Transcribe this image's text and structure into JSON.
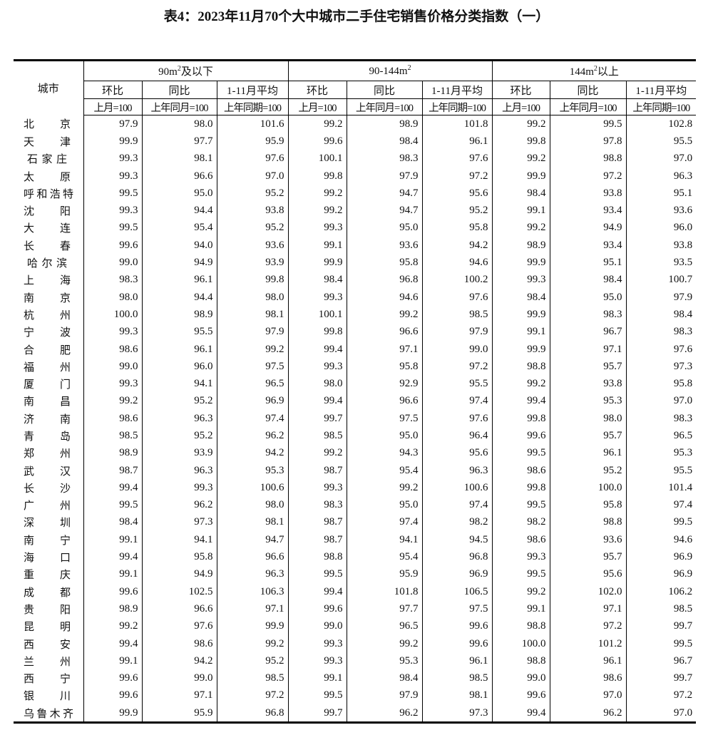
{
  "title": "表4：2023年11月70个大中城市二手住宅销售价格分类指数（一）",
  "header": {
    "city": "城市",
    "groups": [
      {
        "label": "90m",
        "sup": "2",
        "suffix": "及以下"
      },
      {
        "label": "90-144m",
        "sup": "2",
        "suffix": ""
      },
      {
        "label": "144m",
        "sup": "2",
        "suffix": "以上"
      }
    ],
    "subs": [
      "环比",
      "同比",
      "1-11月平均"
    ],
    "units": [
      "上月=100",
      "上年同月=100",
      "上年同期=100"
    ]
  },
  "rows": [
    [
      "北京",
      "97.9",
      "98.0",
      "101.6",
      "99.2",
      "98.9",
      "101.8",
      "99.2",
      "99.5",
      "102.8"
    ],
    [
      "天津",
      "99.9",
      "97.7",
      "95.9",
      "99.6",
      "98.4",
      "96.1",
      "99.8",
      "97.8",
      "95.5"
    ],
    [
      "石家庄",
      "99.3",
      "98.1",
      "97.6",
      "100.1",
      "98.3",
      "97.6",
      "99.2",
      "98.8",
      "97.0"
    ],
    [
      "太原",
      "99.3",
      "96.6",
      "97.0",
      "99.8",
      "97.9",
      "97.2",
      "99.9",
      "97.2",
      "96.3"
    ],
    [
      "呼和浩特",
      "99.5",
      "95.0",
      "95.2",
      "99.2",
      "94.7",
      "95.6",
      "98.4",
      "93.8",
      "95.1"
    ],
    [
      "沈阳",
      "99.3",
      "94.4",
      "93.8",
      "99.2",
      "94.7",
      "95.2",
      "99.1",
      "93.4",
      "93.6"
    ],
    [
      "大连",
      "99.5",
      "95.4",
      "95.2",
      "99.3",
      "95.0",
      "95.8",
      "99.2",
      "94.9",
      "96.0"
    ],
    [
      "长春",
      "99.6",
      "94.0",
      "93.6",
      "99.1",
      "93.6",
      "94.2",
      "98.9",
      "93.4",
      "93.8"
    ],
    [
      "哈尔滨",
      "99.0",
      "94.9",
      "93.9",
      "99.9",
      "95.8",
      "94.6",
      "99.9",
      "95.1",
      "93.5"
    ],
    [
      "上海",
      "98.3",
      "96.1",
      "99.8",
      "98.4",
      "96.8",
      "100.2",
      "99.3",
      "98.4",
      "100.7"
    ],
    [
      "南京",
      "98.0",
      "94.4",
      "98.0",
      "99.3",
      "94.6",
      "97.6",
      "98.4",
      "95.0",
      "97.9"
    ],
    [
      "杭州",
      "100.0",
      "98.9",
      "98.1",
      "100.1",
      "99.2",
      "98.5",
      "99.9",
      "98.3",
      "98.4"
    ],
    [
      "宁波",
      "99.3",
      "95.5",
      "97.9",
      "99.8",
      "96.6",
      "97.9",
      "99.1",
      "96.7",
      "98.3"
    ],
    [
      "合肥",
      "98.6",
      "96.1",
      "99.2",
      "99.4",
      "97.1",
      "99.0",
      "99.9",
      "97.1",
      "97.6"
    ],
    [
      "福州",
      "99.0",
      "96.0",
      "97.5",
      "99.3",
      "95.8",
      "97.2",
      "98.8",
      "95.7",
      "97.3"
    ],
    [
      "厦门",
      "99.3",
      "94.1",
      "96.5",
      "98.0",
      "92.9",
      "95.5",
      "99.2",
      "93.8",
      "95.8"
    ],
    [
      "南昌",
      "99.2",
      "95.2",
      "96.9",
      "99.4",
      "96.6",
      "97.4",
      "99.4",
      "95.3",
      "97.0"
    ],
    [
      "济南",
      "98.6",
      "96.3",
      "97.4",
      "99.7",
      "97.5",
      "97.6",
      "99.8",
      "98.0",
      "98.3"
    ],
    [
      "青岛",
      "98.5",
      "95.2",
      "96.2",
      "98.5",
      "95.0",
      "96.4",
      "99.6",
      "95.7",
      "96.5"
    ],
    [
      "郑州",
      "98.9",
      "93.9",
      "94.2",
      "99.2",
      "94.3",
      "95.6",
      "99.5",
      "96.1",
      "95.3"
    ],
    [
      "武汉",
      "98.7",
      "96.3",
      "95.3",
      "98.7",
      "95.4",
      "96.3",
      "98.6",
      "95.2",
      "95.5"
    ],
    [
      "长沙",
      "99.4",
      "99.3",
      "100.6",
      "99.3",
      "99.2",
      "100.6",
      "99.8",
      "100.0",
      "101.4"
    ],
    [
      "广州",
      "99.5",
      "96.2",
      "98.0",
      "98.3",
      "95.0",
      "97.4",
      "99.5",
      "95.8",
      "97.4"
    ],
    [
      "深圳",
      "98.4",
      "97.3",
      "98.1",
      "98.7",
      "97.4",
      "98.2",
      "98.2",
      "98.8",
      "99.5"
    ],
    [
      "南宁",
      "99.1",
      "94.1",
      "94.7",
      "98.7",
      "94.1",
      "94.5",
      "98.6",
      "93.6",
      "94.6"
    ],
    [
      "海口",
      "99.4",
      "95.8",
      "96.6",
      "98.8",
      "95.4",
      "96.8",
      "99.3",
      "95.7",
      "96.9"
    ],
    [
      "重庆",
      "99.1",
      "94.9",
      "96.3",
      "99.5",
      "95.9",
      "96.9",
      "99.5",
      "95.6",
      "96.9"
    ],
    [
      "成都",
      "99.6",
      "102.5",
      "106.3",
      "99.4",
      "101.8",
      "106.5",
      "99.2",
      "102.0",
      "106.2"
    ],
    [
      "贵阳",
      "98.9",
      "96.6",
      "97.1",
      "99.6",
      "97.7",
      "97.5",
      "99.1",
      "97.1",
      "98.5"
    ],
    [
      "昆明",
      "99.2",
      "97.6",
      "99.9",
      "99.0",
      "96.5",
      "99.6",
      "98.8",
      "97.2",
      "99.7"
    ],
    [
      "西安",
      "99.4",
      "98.6",
      "99.2",
      "99.3",
      "99.2",
      "99.6",
      "100.0",
      "101.2",
      "99.5"
    ],
    [
      "兰州",
      "99.1",
      "94.2",
      "95.2",
      "99.3",
      "95.3",
      "96.1",
      "98.8",
      "96.1",
      "96.7"
    ],
    [
      "西宁",
      "99.6",
      "99.0",
      "98.5",
      "99.1",
      "98.4",
      "98.5",
      "99.0",
      "98.6",
      "99.7"
    ],
    [
      "银川",
      "99.6",
      "97.1",
      "97.2",
      "99.5",
      "97.9",
      "98.1",
      "99.6",
      "97.0",
      "97.2"
    ],
    [
      "乌鲁木齐",
      "99.9",
      "95.9",
      "96.8",
      "99.7",
      "96.2",
      "97.3",
      "99.4",
      "96.2",
      "97.0"
    ]
  ]
}
